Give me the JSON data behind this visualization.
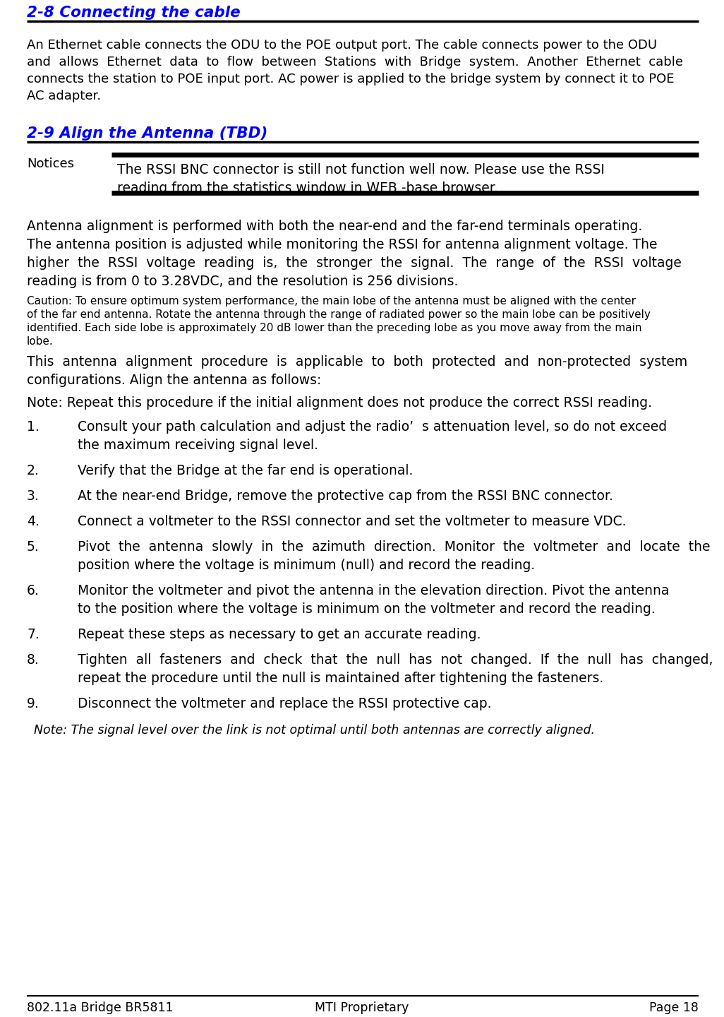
{
  "bg_color": "#ffffff",
  "text_color": "#000000",
  "heading_color": "#0000ff",
  "section1_heading": "2-8 Connecting the cable",
  "section2_heading": "2-9 Align the Antenna (TBD)",
  "para1_lines": [
    "An Ethernet cable connects the ODU to the POE output port. The cable connects power to the ODU",
    "and  allows  Ethernet  data  to  flow  between  Stations  with  Bridge  system.  Another  Ethernet  cable",
    "connects the station to POE input port. AC power is applied to the bridge system by connect it to POE",
    "AC adapter."
  ],
  "notices_label": "Notices",
  "notice_line1": "The RSSI BNC connector is still not function well now. Please use the RSSI",
  "notice_line2": "reading from the statistics window in WEB -base browser.",
  "para2_lines": [
    "Antenna alignment is performed with both the near-end and the far-end terminals operating.",
    "The antenna position is adjusted while monitoring the RSSI for antenna alignment voltage. The",
    "higher  the  RSSI  voltage  reading  is,  the  stronger  the  signal.  The  range  of  the  RSSI  voltage",
    "reading is from 0 to 3.28VDC, and the resolution is 256 divisions."
  ],
  "caution_lines": [
    "Caution: To ensure optimum system performance, the main lobe of the antenna must be aligned with the center",
    "of the far end antenna. Rotate the antenna through the range of radiated power so the main lobe can be positively",
    "identified. Each side lobe is approximately 20 dB lower than the preceding lobe as you move away from the main",
    "lobe."
  ],
  "para3_lines": [
    "This  antenna  alignment  procedure  is  applicable  to  both  protected  and  non-protected  system",
    "configurations. Align the antenna as follows:"
  ],
  "note1": "Note: Repeat this procedure if the initial alignment does not produce the correct RSSI reading.",
  "numbered_items": [
    [
      "1.",
      "Consult your path calculation and adjust the radio’  s attenuation level, so do not exceed",
      "the maximum receiving signal level."
    ],
    [
      "2.",
      "Verify that the Bridge at the far end is operational.",
      ""
    ],
    [
      "3.",
      "At the near-end Bridge, remove the protective cap from the RSSI BNC connector.",
      ""
    ],
    [
      "4.",
      "Connect a voltmeter to the RSSI connector and set the voltmeter to measure VDC.",
      ""
    ],
    [
      "5.",
      "Pivot  the  antenna  slowly  in  the  azimuth  direction.  Monitor  the  voltmeter  and  locate  the",
      "position where the voltage is minimum (null) and record the reading."
    ],
    [
      "6.",
      "Monitor the voltmeter and pivot the antenna in the elevation direction. Pivot the antenna",
      "to the position where the voltage is minimum on the voltmeter and record the reading."
    ],
    [
      "7.",
      "Repeat these steps as necessary to get an accurate reading.",
      ""
    ],
    [
      "8.",
      "Tighten  all  fasteners  and  check  that  the  null  has  not  changed.  If  the  null  has  changed,",
      "repeat the procedure until the null is maintained after tightening the fasteners."
    ],
    [
      "9.",
      "Disconnect the voltmeter and replace the RSSI protective cap.",
      ""
    ]
  ],
  "note2": "Note: The signal level over the link is not optimal until both antennas are correctly aligned.",
  "footer_left": "802.11a Bridge BR5811",
  "footer_center": "MTI Proprietary",
  "footer_right": "Page 18"
}
